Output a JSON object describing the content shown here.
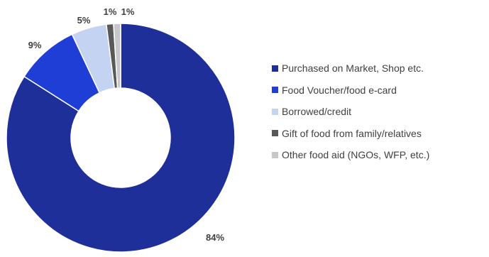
{
  "chart_data": {
    "type": "pie",
    "variant": "donut",
    "title": "",
    "categories": [
      "Purchased on Market, Shop etc.",
      "Food Voucher/food e-card",
      "Borrowed/credit",
      "Gift of food from family/relatives",
      "Other food aid (NGOs, WFP, etc.)"
    ],
    "values": [
      84,
      9,
      5,
      1,
      1
    ],
    "value_labels": [
      "84%",
      "9%",
      "5%",
      "1%",
      "1%"
    ],
    "colors": [
      "#1f2f99",
      "#1f3ed6",
      "#c5d3f2",
      "#595959",
      "#c8c8c8"
    ],
    "legend_position": "right",
    "start_angle": "12 o'clock",
    "direction": "clockwise"
  }
}
